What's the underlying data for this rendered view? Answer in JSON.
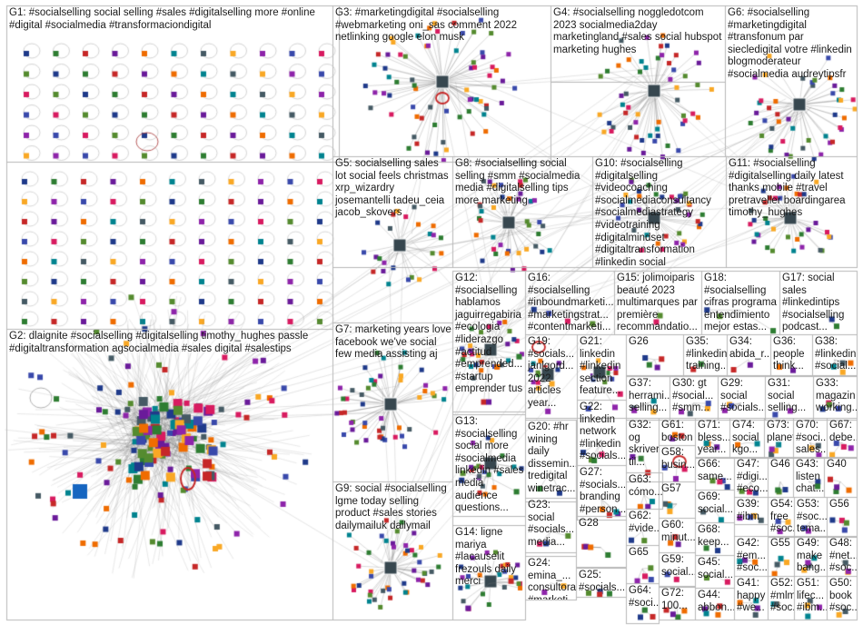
{
  "graph": {
    "colors": {
      "border": "#b8b8b8",
      "edge": "#9a9a9a",
      "background": "#ffffff",
      "text": "#1a1a1a"
    },
    "groups": [
      {
        "id": "G1",
        "label": "G1: #socialselling social selling #sales #digitalselling more #online #digital #socialmedia #transformaciondigital"
      },
      {
        "id": "G3",
        "label": "G3: #marketingdigital #socialselling #webmarketing oni_sas comment 2022 netlinking google elon musk"
      },
      {
        "id": "G4",
        "label": "G4: #socialselling noggledotcom 2023 socialmedia2day marketingland #sales social hubspot marketing hughes"
      },
      {
        "id": "G6",
        "label": "G6: #socialselling #marketingdigital #transfonum par siecledigital votre #linkedin blogmoderateur #socialmedia audreytipsfr"
      },
      {
        "id": "G5",
        "label": "G5: socialselling sales lot social feels christmas xrp_wizardry josemantelli tadeu_ceia jacob_skovers"
      },
      {
        "id": "G8",
        "label": "G8: #socialselling social selling #smm #socialmedia media #digitalselling tips more marketing"
      },
      {
        "id": "G10",
        "label": "G10: #socialselling #digitalselling #videocoaching #socialmediaconsultancy #socialmediastrategy #videotraining #digitalmindset #digitaltransformation #linkedin social"
      },
      {
        "id": "G11",
        "label": "G11: #socialselling #digitalselling daily latest thanks mobile #travel pretraveller boardingarea timothy_hughes"
      },
      {
        "id": "G2",
        "label": "G2: dlaignite #socialselling #digitalselling timothy_hughes passle #digitaltransformation agsocialmedia #sales digital #salestips"
      },
      {
        "id": "G12",
        "label": "G12: #socialselling hablamos jaguirregabiria #ecologia #liderazgo #actitud #emprended... #startup emprender tus"
      },
      {
        "id": "G16",
        "label": "G16: #socialselling #inboundmarketi... #marketingstrat... #contentmarketi..."
      },
      {
        "id": "G15",
        "label": "G15: jolimoiparis beauté 2023 multimarques par première recommandatio..."
      },
      {
        "id": "G18",
        "label": "G18: #socialselling cifras programa entendimiento mejor estas..."
      },
      {
        "id": "G17",
        "label": "G17: social sales #linkedintips #socialselling podcast..."
      },
      {
        "id": "G7",
        "label": "G7: marketing years love facebook we've social few media assisting aj"
      },
      {
        "id": "G19",
        "label": "G19: #socials... janlgord... 2022 articles year..."
      },
      {
        "id": "G21",
        "label": "G21: linkedin #linkedin section feature..."
      },
      {
        "id": "G26",
        "label": "G26"
      },
      {
        "id": "G35",
        "label": "G35: #linkedinabida_r... training..."
      },
      {
        "id": "G34",
        "label": "G34: abida_r..."
      },
      {
        "id": "G36",
        "label": "G36: people think..."
      },
      {
        "id": "G38",
        "label": "G38: #linkedin #social..."
      },
      {
        "id": "G37",
        "label": "G37: herrami... selling..."
      },
      {
        "id": "G30",
        "label": "G30: gt #social... #smm..."
      },
      {
        "id": "G29",
        "label": "G29: social #socials..."
      },
      {
        "id": "G31",
        "label": "G31: social selling..."
      },
      {
        "id": "G33",
        "label": "G33: magazin working..."
      },
      {
        "id": "G22",
        "label": "G22: linkedin network #linkedin #socials..."
      },
      {
        "id": "G13",
        "label": "G13: #socialselling social more #socialmedia linkedin #sales media audience questions..."
      },
      {
        "id": "G20",
        "label": "G20: #hr wining daily dissemin... tredigital winetrac..."
      },
      {
        "id": "G32",
        "label": "G32: og skriver til..."
      },
      {
        "id": "G61",
        "label": "G61: boston"
      },
      {
        "id": "G71",
        "label": "G71: bless... year..."
      },
      {
        "id": "G74",
        "label": "G74: social kgo..."
      },
      {
        "id": "G73",
        "label": "G73: planet"
      },
      {
        "id": "G70",
        "label": "G70: #soci... sales..."
      },
      {
        "id": "G67",
        "label": "G67: debe..."
      },
      {
        "id": "G58",
        "label": "G58: busin..."
      },
      {
        "id": "G66",
        "label": "G66: same..."
      },
      {
        "id": "G47",
        "label": "G47: #digi... #eco..."
      },
      {
        "id": "G46",
        "label": "G46"
      },
      {
        "id": "G43",
        "label": "G43: listen chat..."
      },
      {
        "id": "G40",
        "label": "G40"
      },
      {
        "id": "G27",
        "label": "G27: #socials... branding #person..."
      },
      {
        "id": "G63",
        "label": "G63: cómo..."
      },
      {
        "id": "G57",
        "label": "G57"
      },
      {
        "id": "G69",
        "label": "G69: social..."
      },
      {
        "id": "G39",
        "label": "G39: #ibm"
      },
      {
        "id": "G54",
        "label": "G54: free #soc..."
      },
      {
        "id": "G53",
        "label": "G53: #soc... tema..."
      },
      {
        "id": "G56",
        "label": "G56"
      },
      {
        "id": "G9",
        "label": "G9: social #socialselling lgme today selling product #sales stories dailymailuk dailymail"
      },
      {
        "id": "G23",
        "label": "G23: social #socials... media..."
      },
      {
        "id": "G62",
        "label": "G62: #vide..."
      },
      {
        "id": "G68",
        "label": "G68: keep..."
      },
      {
        "id": "G28",
        "label": "G28"
      },
      {
        "id": "G60",
        "label": "G60: minut..."
      },
      {
        "id": "G42",
        "label": "G42: #em... #soc..."
      },
      {
        "id": "G55",
        "label": "G55"
      },
      {
        "id": "G49",
        "label": "G49: make bang..."
      },
      {
        "id": "G48",
        "label": "G48: #net... #soc..."
      },
      {
        "id": "G14",
        "label": "G14: ligne mariya #lacauselit frezouls daily merci"
      },
      {
        "id": "G24",
        "label": "G24: emina_... consultora #marketi..."
      },
      {
        "id": "G65",
        "label": "G65"
      },
      {
        "id": "G59",
        "label": "G59: social..."
      },
      {
        "id": "G45",
        "label": "G45: social..."
      },
      {
        "id": "G25",
        "label": "G25: #socials..."
      },
      {
        "id": "G64",
        "label": "G64: #soci..."
      },
      {
        "id": "G72",
        "label": "G72: 100..."
      },
      {
        "id": "G44",
        "label": "G44: abbon..."
      },
      {
        "id": "G41",
        "label": "G41: happy #we..."
      },
      {
        "id": "G52",
        "label": "G52: #mlm #soc..."
      },
      {
        "id": "G51",
        "label": "G51: lifec... #ibm..."
      },
      {
        "id": "G50",
        "label": "G50: book #soc..."
      }
    ]
  }
}
